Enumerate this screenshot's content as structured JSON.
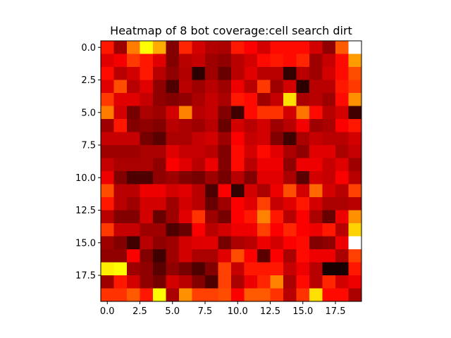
{
  "chart_data": {
    "type": "heatmap",
    "title": "Heatmap of 8 bot coverage:cell search dirt",
    "xlabel": "",
    "ylabel": "",
    "colormap": "hot",
    "rows": 20,
    "cols": 20,
    "xlim": [
      -0.5,
      19.5
    ],
    "ylim": [
      19.5,
      -0.5
    ],
    "xticks": [
      0.0,
      2.5,
      5.0,
      7.5,
      10.0,
      12.5,
      15.0,
      17.5
    ],
    "xtick_labels": [
      "0.0",
      "2.5",
      "5.0",
      "7.5",
      "10.0",
      "12.5",
      "15.0",
      "17.5"
    ],
    "yticks": [
      0.0,
      2.5,
      5.0,
      7.5,
      10.0,
      12.5,
      15.0,
      17.5
    ],
    "ytick_labels": [
      "0.0",
      "2.5",
      "5.0",
      "7.5",
      "10.0",
      "12.5",
      "15.0",
      "17.5"
    ],
    "grid": false,
    "value_range": [
      0,
      1
    ],
    "values": [
      [
        0.4,
        0.22,
        0.55,
        0.75,
        0.62,
        0.18,
        0.42,
        0.3,
        0.25,
        0.24,
        0.4,
        0.36,
        0.3,
        0.38,
        0.38,
        0.38,
        0.3,
        0.2,
        0.5,
        1.0
      ],
      [
        0.32,
        0.35,
        0.45,
        0.4,
        0.32,
        0.18,
        0.26,
        0.28,
        0.22,
        0.2,
        0.26,
        0.3,
        0.38,
        0.4,
        0.38,
        0.42,
        0.22,
        0.28,
        0.38,
        0.6
      ],
      [
        0.38,
        0.26,
        0.3,
        0.4,
        0.26,
        0.2,
        0.25,
        0.05,
        0.22,
        0.14,
        0.26,
        0.32,
        0.26,
        0.26,
        0.06,
        0.26,
        0.22,
        0.3,
        0.38,
        0.48
      ],
      [
        0.32,
        0.48,
        0.26,
        0.32,
        0.2,
        0.1,
        0.26,
        0.22,
        0.26,
        0.22,
        0.34,
        0.26,
        0.45,
        0.22,
        0.3,
        0.05,
        0.26,
        0.26,
        0.4,
        0.45
      ],
      [
        0.45,
        0.32,
        0.32,
        0.28,
        0.2,
        0.18,
        0.2,
        0.24,
        0.28,
        0.24,
        0.4,
        0.38,
        0.22,
        0.28,
        0.7,
        0.24,
        0.26,
        0.22,
        0.38,
        0.58
      ],
      [
        0.55,
        0.3,
        0.16,
        0.24,
        0.22,
        0.3,
        0.56,
        0.26,
        0.28,
        0.18,
        0.08,
        0.38,
        0.44,
        0.44,
        0.3,
        0.54,
        0.38,
        0.26,
        0.3,
        0.08
      ],
      [
        0.22,
        0.4,
        0.18,
        0.2,
        0.18,
        0.26,
        0.24,
        0.22,
        0.26,
        0.14,
        0.3,
        0.26,
        0.3,
        0.22,
        0.26,
        0.35,
        0.22,
        0.24,
        0.36,
        0.4
      ],
      [
        0.28,
        0.28,
        0.28,
        0.16,
        0.12,
        0.24,
        0.24,
        0.28,
        0.3,
        0.22,
        0.36,
        0.28,
        0.3,
        0.18,
        0.08,
        0.24,
        0.28,
        0.26,
        0.26,
        0.3
      ],
      [
        0.22,
        0.22,
        0.22,
        0.24,
        0.24,
        0.32,
        0.28,
        0.28,
        0.26,
        0.18,
        0.38,
        0.3,
        0.38,
        0.32,
        0.24,
        0.2,
        0.32,
        0.32,
        0.24,
        0.28
      ],
      [
        0.28,
        0.24,
        0.24,
        0.24,
        0.2,
        0.36,
        0.32,
        0.26,
        0.34,
        0.18,
        0.38,
        0.26,
        0.34,
        0.34,
        0.2,
        0.34,
        0.34,
        0.28,
        0.32,
        0.22
      ],
      [
        0.34,
        0.18,
        0.1,
        0.1,
        0.2,
        0.22,
        0.18,
        0.16,
        0.22,
        0.16,
        0.26,
        0.18,
        0.32,
        0.32,
        0.24,
        0.12,
        0.3,
        0.28,
        0.36,
        0.26
      ],
      [
        0.48,
        0.26,
        0.26,
        0.34,
        0.34,
        0.3,
        0.32,
        0.26,
        0.1,
        0.36,
        0.06,
        0.3,
        0.24,
        0.34,
        0.48,
        0.3,
        0.52,
        0.3,
        0.26,
        0.46
      ],
      [
        0.4,
        0.26,
        0.22,
        0.3,
        0.3,
        0.22,
        0.3,
        0.26,
        0.14,
        0.22,
        0.36,
        0.32,
        0.46,
        0.28,
        0.32,
        0.4,
        0.3,
        0.24,
        0.24,
        0.26
      ],
      [
        0.26,
        0.18,
        0.18,
        0.3,
        0.14,
        0.22,
        0.32,
        0.44,
        0.22,
        0.16,
        0.36,
        0.4,
        0.56,
        0.4,
        0.26,
        0.36,
        0.24,
        0.14,
        0.34,
        0.58
      ],
      [
        0.45,
        0.28,
        0.28,
        0.22,
        0.22,
        0.1,
        0.14,
        0.36,
        0.26,
        0.3,
        0.34,
        0.34,
        0.46,
        0.36,
        0.42,
        0.36,
        0.34,
        0.4,
        0.26,
        0.68
      ],
      [
        0.22,
        0.18,
        0.08,
        0.26,
        0.2,
        0.22,
        0.3,
        0.32,
        0.32,
        0.16,
        0.24,
        0.26,
        0.34,
        0.3,
        0.36,
        0.38,
        0.18,
        0.2,
        0.34,
        1.0
      ],
      [
        0.2,
        0.2,
        0.36,
        0.18,
        0.08,
        0.22,
        0.3,
        0.24,
        0.24,
        0.32,
        0.48,
        0.36,
        0.12,
        0.36,
        0.24,
        0.38,
        0.34,
        0.34,
        0.24,
        0.46
      ],
      [
        0.72,
        0.74,
        0.22,
        0.2,
        0.12,
        0.2,
        0.16,
        0.1,
        0.18,
        0.46,
        0.28,
        0.4,
        0.4,
        0.4,
        0.28,
        0.34,
        0.26,
        0.02,
        0.02,
        0.4
      ],
      [
        0.22,
        0.4,
        0.3,
        0.2,
        0.16,
        0.3,
        0.26,
        0.18,
        0.1,
        0.46,
        0.24,
        0.34,
        0.42,
        0.56,
        0.24,
        0.38,
        0.26,
        0.42,
        0.3,
        0.34
      ],
      [
        0.44,
        0.44,
        0.5,
        0.4,
        0.74,
        0.24,
        0.58,
        0.46,
        0.46,
        0.48,
        0.36,
        0.5,
        0.5,
        0.44,
        0.26,
        0.44,
        0.7,
        0.38,
        0.38,
        0.24
      ]
    ]
  }
}
